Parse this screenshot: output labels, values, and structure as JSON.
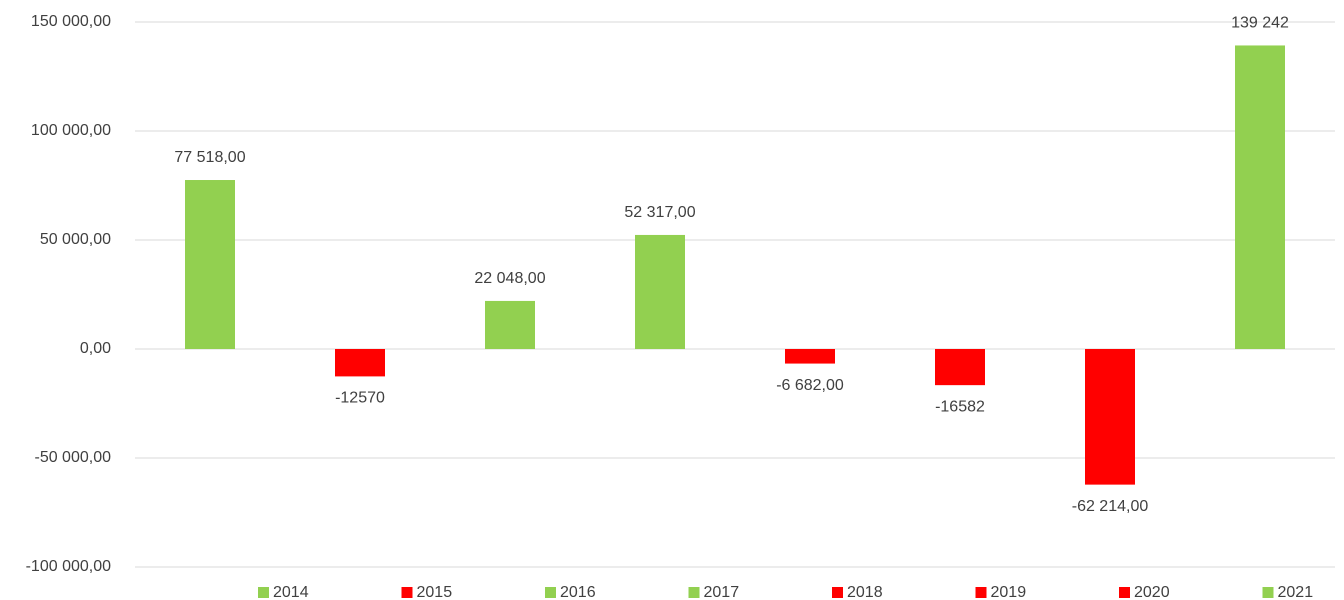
{
  "chart_data": {
    "type": "bar",
    "categories": [
      "2014",
      "2015",
      "2016",
      "2017",
      "2018",
      "2019",
      "2020",
      "2021"
    ],
    "values": [
      77518,
      -12570,
      22048,
      52317,
      -6682,
      -16582,
      -62214,
      139242
    ],
    "value_labels": [
      "77 518,00",
      "-12570",
      "22 048,00",
      "52 317,00",
      "-6 682,00",
      "-16582",
      "-62 214,00",
      "139 242"
    ],
    "colors": [
      "#92d050",
      "#ff0000",
      "#92d050",
      "#92d050",
      "#ff0000",
      "#ff0000",
      "#ff0000",
      "#92d050"
    ],
    "ylim": [
      -100000,
      150000
    ],
    "yticks": [
      {
        "value": -100000,
        "label": "-100 000,00"
      },
      {
        "value": -50000,
        "label": "-50 000,00"
      },
      {
        "value": 0,
        "label": "0,00"
      },
      {
        "value": 50000,
        "label": "50 000,00"
      },
      {
        "value": 100000,
        "label": "100 000,00"
      },
      {
        "value": 150000,
        "label": "150 000,00"
      }
    ],
    "grid": true,
    "legend": "bottom"
  }
}
